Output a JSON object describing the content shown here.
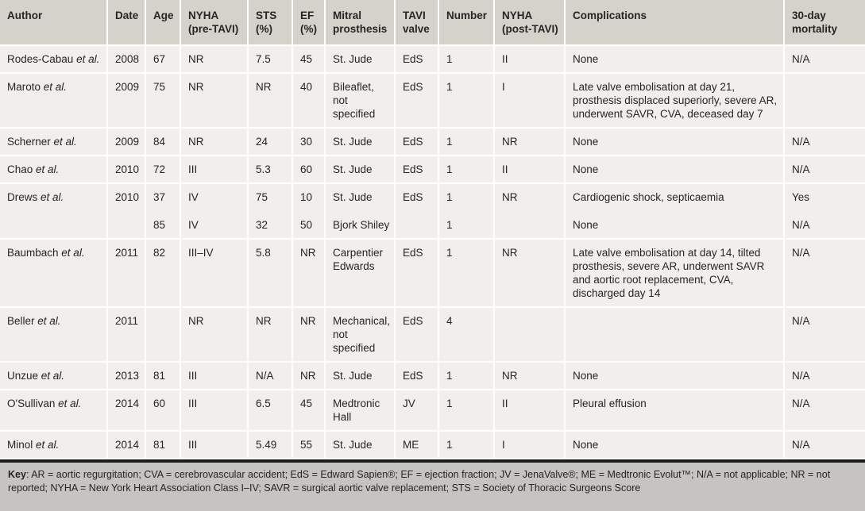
{
  "table": {
    "columns": [
      "Author",
      "Date",
      "Age",
      "NYHA (pre-TAVI)",
      "STS (%)",
      "EF (%)",
      "Mitral prosthesis",
      "TAVI valve",
      "Number",
      "NYHA (post-TAVI)",
      "Complications",
      "30-day mortality"
    ],
    "rows": [
      {
        "author": {
          "name": "Rodes-Cabau",
          "etal": "et al."
        },
        "cells": [
          "2008",
          "67",
          "NR",
          "7.5",
          "45",
          "St. Jude",
          "EdS",
          "1",
          "II",
          "None",
          "N/A"
        ]
      },
      {
        "author": {
          "name": "Maroto",
          "etal": "et al."
        },
        "cells": [
          "2009",
          "75",
          "NR",
          "NR",
          "40",
          "Bileaflet, not specified",
          "EdS",
          "1",
          "I",
          "Late valve embolisation at day 21, prosthesis displaced superiorly, severe AR, underwent SAVR, CVA, deceased day 7",
          ""
        ]
      },
      {
        "author": {
          "name": "Scherner",
          "etal": "et al."
        },
        "cells": [
          "2009",
          "84",
          "NR",
          "24",
          "30",
          "St. Jude",
          "EdS",
          "1",
          "NR",
          "None",
          "N/A"
        ]
      },
      {
        "author": {
          "name": "Chao",
          "etal": "et al."
        },
        "cells": [
          "2010",
          "72",
          "III",
          "5.3",
          "60",
          "St. Jude",
          "EdS",
          "1",
          "II",
          "None",
          "N/A"
        ]
      },
      {
        "author": {
          "name": "Drews",
          "etal": "et al."
        },
        "cells": [
          "2010",
          [
            "37",
            "85"
          ],
          [
            "IV",
            "IV"
          ],
          [
            "75",
            "32"
          ],
          [
            "10",
            "50"
          ],
          [
            "St. Jude",
            "Bjork Shiley"
          ],
          [
            "EdS",
            ""
          ],
          [
            "1",
            "1"
          ],
          [
            "NR",
            ""
          ],
          [
            "Cardiogenic shock, septicaemia",
            "None"
          ],
          [
            "Yes",
            "N/A"
          ]
        ]
      },
      {
        "author": {
          "name": "Baumbach",
          "etal": "et al."
        },
        "cells": [
          "2011",
          "82",
          "III–IV",
          "5.8",
          "NR",
          "Carpentier Edwards",
          "EdS",
          "1",
          "NR",
          "Late valve embolisation at day 14, tilted prosthesis, severe AR, underwent SAVR and aortic root replacement, CVA, discharged day 14",
          "N/A"
        ]
      },
      {
        "author": {
          "name": "Beller",
          "etal": "et al."
        },
        "cells": [
          "2011",
          "",
          "NR",
          "NR",
          "NR",
          "Mechanical, not specified",
          "EdS",
          "4",
          "",
          "",
          "N/A"
        ]
      },
      {
        "author": {
          "name": "Unzue",
          "etal": "et al."
        },
        "cells": [
          "2013",
          "81",
          "III",
          "N/A",
          "NR",
          "St. Jude",
          "EdS",
          "1",
          "NR",
          "None",
          "N/A"
        ]
      },
      {
        "author": {
          "name": "O'Sullivan",
          "etal": "et al."
        },
        "cells": [
          "2014",
          "60",
          "III",
          "6.5",
          "45",
          "Medtronic Hall",
          "JV",
          "1",
          "II",
          "Pleural effusion",
          "N/A"
        ]
      },
      {
        "author": {
          "name": "Minol",
          "etal": "et al."
        },
        "cells": [
          "2014",
          "81",
          "III",
          "5.49",
          "55",
          "St. Jude",
          "ME",
          "1",
          "I",
          "None",
          "N/A"
        ]
      }
    ]
  },
  "footer": {
    "key_label": "Key",
    "key_text": ": AR = aortic regurgitation; CVA = cerebrovascular accident; EdS = Edward Sapien®; EF = ejection fraction; JV = JenaValve®; ME = Medtronic Evolut™; N/A = not applicable; NR = not reported; NYHA = New York Heart Association Class I–IV; SAVR = surgical aortic valve replacement; STS = Society of Thoracic Surgeons Score"
  },
  "colors": {
    "header_bg": "#d5d2cc",
    "row_bg": "#f0efec",
    "key_bg": "#c6c4c0",
    "rule": "#1b1b1b",
    "text": "#272425",
    "separator": "#ffffff"
  }
}
